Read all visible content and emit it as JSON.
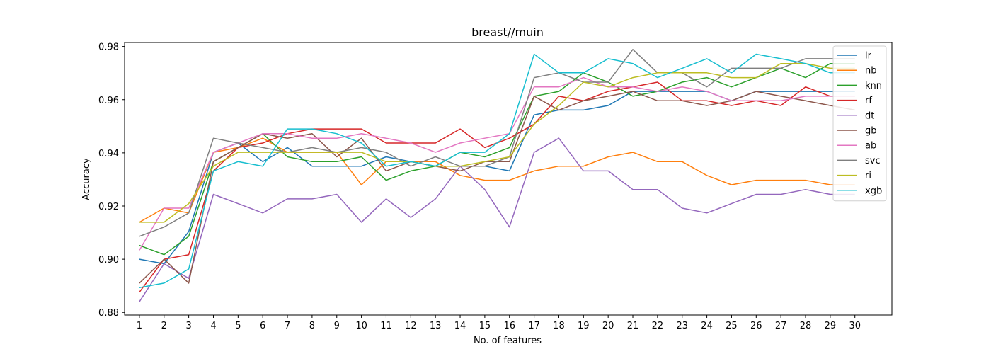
{
  "chart_data": {
    "type": "line",
    "title": "breast//muin",
    "xlabel": "No. of features",
    "ylabel": "Accuracy",
    "x": [
      1,
      2,
      3,
      4,
      5,
      6,
      7,
      8,
      9,
      10,
      11,
      12,
      13,
      14,
      15,
      16,
      17,
      18,
      19,
      20,
      21,
      22,
      23,
      24,
      25,
      26,
      27,
      28,
      29,
      30
    ],
    "xlim": [
      0.4,
      31.5
    ],
    "ylim": [
      0.879,
      0.9815
    ],
    "yticks": [
      0.88,
      0.9,
      0.92,
      0.94,
      0.96,
      0.98
    ],
    "ytick_labels": [
      "0.88",
      "0.90",
      "0.92",
      "0.94",
      "0.96",
      "0.98"
    ],
    "grid": false,
    "legend_position": "top-right",
    "series": [
      {
        "name": "lr",
        "color": "#1f77b4",
        "values": [
          0.9,
          0.8983,
          0.9104,
          0.9402,
          0.9437,
          0.9367,
          0.942,
          0.935,
          0.935,
          0.935,
          0.9385,
          0.9367,
          0.935,
          0.935,
          0.935,
          0.9332,
          0.9543,
          0.9561,
          0.9561,
          0.9578,
          0.9631,
          0.9631,
          0.9631,
          0.9631,
          0.9596,
          0.9631,
          0.9631,
          0.9631,
          0.9631,
          0.9631
        ]
      },
      {
        "name": "nb",
        "color": "#ff7f0e",
        "values": [
          0.9139,
          0.9192,
          0.9174,
          0.9402,
          0.942,
          0.9455,
          0.9402,
          0.9402,
          0.9402,
          0.928,
          0.9367,
          0.9367,
          0.9367,
          0.9315,
          0.9297,
          0.9297,
          0.9332,
          0.935,
          0.935,
          0.9385,
          0.9402,
          0.9367,
          0.9367,
          0.9315,
          0.928,
          0.9297,
          0.9297,
          0.9297,
          0.928,
          0.928
        ]
      },
      {
        "name": "knn",
        "color": "#2ca02c",
        "values": [
          0.9052,
          0.9017,
          0.9086,
          0.9367,
          0.942,
          0.9472,
          0.9385,
          0.9367,
          0.9367,
          0.9385,
          0.9297,
          0.9332,
          0.935,
          0.9402,
          0.9385,
          0.942,
          0.9613,
          0.9631,
          0.9701,
          0.9666,
          0.9613,
          0.9631,
          0.9666,
          0.9683,
          0.9648,
          0.9683,
          0.9718,
          0.9683,
          0.9736,
          0.9736
        ]
      },
      {
        "name": "rf",
        "color": "#d62728",
        "values": [
          0.8876,
          0.9,
          0.9017,
          0.9332,
          0.942,
          0.9437,
          0.9472,
          0.949,
          0.949,
          0.949,
          0.9437,
          0.9437,
          0.9437,
          0.949,
          0.942,
          0.9455,
          0.9508,
          0.9613,
          0.9596,
          0.9631,
          0.9648,
          0.9666,
          0.9596,
          0.9596,
          0.9578,
          0.9596,
          0.9578,
          0.9648,
          0.9613,
          0.9613
        ]
      },
      {
        "name": "dt",
        "color": "#9467bd",
        "values": [
          0.884,
          0.8983,
          0.8928,
          0.9244,
          0.9209,
          0.9174,
          0.9227,
          0.9227,
          0.9244,
          0.9139,
          0.9227,
          0.9157,
          0.9227,
          0.935,
          0.9262,
          0.9121,
          0.9402,
          0.9455,
          0.9332,
          0.9332,
          0.9262,
          0.9262,
          0.9192,
          0.9174,
          0.9209,
          0.9244,
          0.9244,
          0.9262,
          0.9244,
          0.9244
        ]
      },
      {
        "name": "gb",
        "color": "#8c564b",
        "values": [
          0.891,
          0.9,
          0.891,
          0.9367,
          0.942,
          0.9472,
          0.9455,
          0.9472,
          0.9385,
          0.9455,
          0.9332,
          0.9367,
          0.935,
          0.9332,
          0.9367,
          0.9367,
          0.9613,
          0.9561,
          0.9596,
          0.9613,
          0.9631,
          0.9596,
          0.9596,
          0.9578,
          0.9596,
          0.9631,
          0.9613,
          0.9596,
          0.9578,
          0.9561
        ]
      },
      {
        "name": "ab",
        "color": "#e377c2",
        "values": [
          0.9034,
          0.9192,
          0.9192,
          0.9402,
          0.9437,
          0.9472,
          0.9472,
          0.9455,
          0.9455,
          0.9472,
          0.9455,
          0.9437,
          0.9402,
          0.9437,
          0.9455,
          0.9472,
          0.9648,
          0.9648,
          0.9683,
          0.9648,
          0.9648,
          0.9631,
          0.9648,
          0.9631,
          0.9596,
          0.9596,
          0.9596,
          0.9613,
          0.9613,
          0.9613
        ]
      },
      {
        "name": "svc",
        "color": "#7f7f7f",
        "values": [
          0.9086,
          0.9121,
          0.9174,
          0.9455,
          0.9437,
          0.942,
          0.9402,
          0.942,
          0.9402,
          0.942,
          0.9402,
          0.935,
          0.9385,
          0.935,
          0.935,
          0.9385,
          0.9683,
          0.9701,
          0.9666,
          0.9666,
          0.9789,
          0.9701,
          0.9701,
          0.9648,
          0.9718,
          0.9718,
          0.9718,
          0.9754,
          0.9754,
          0.9754
        ]
      },
      {
        "name": "ri",
        "color": "#bcbd22",
        "values": [
          0.9139,
          0.9139,
          0.9209,
          0.935,
          0.9402,
          0.9402,
          0.9402,
          0.9402,
          0.9402,
          0.9402,
          0.9367,
          0.9367,
          0.935,
          0.935,
          0.9367,
          0.9385,
          0.9508,
          0.9578,
          0.9666,
          0.9648,
          0.9683,
          0.9701,
          0.9701,
          0.9701,
          0.9683,
          0.9683,
          0.9736,
          0.9736,
          0.9718,
          0.9718
        ]
      },
      {
        "name": "xgb",
        "color": "#17becf",
        "values": [
          0.8893,
          0.891,
          0.8963,
          0.9332,
          0.9367,
          0.935,
          0.949,
          0.949,
          0.9472,
          0.9437,
          0.935,
          0.9367,
          0.935,
          0.9402,
          0.9402,
          0.9472,
          0.9771,
          0.9701,
          0.9701,
          0.9754,
          0.9736,
          0.9683,
          0.9718,
          0.9754,
          0.9701,
          0.9771,
          0.9754,
          0.9736,
          0.9701,
          0.9701
        ]
      }
    ]
  }
}
